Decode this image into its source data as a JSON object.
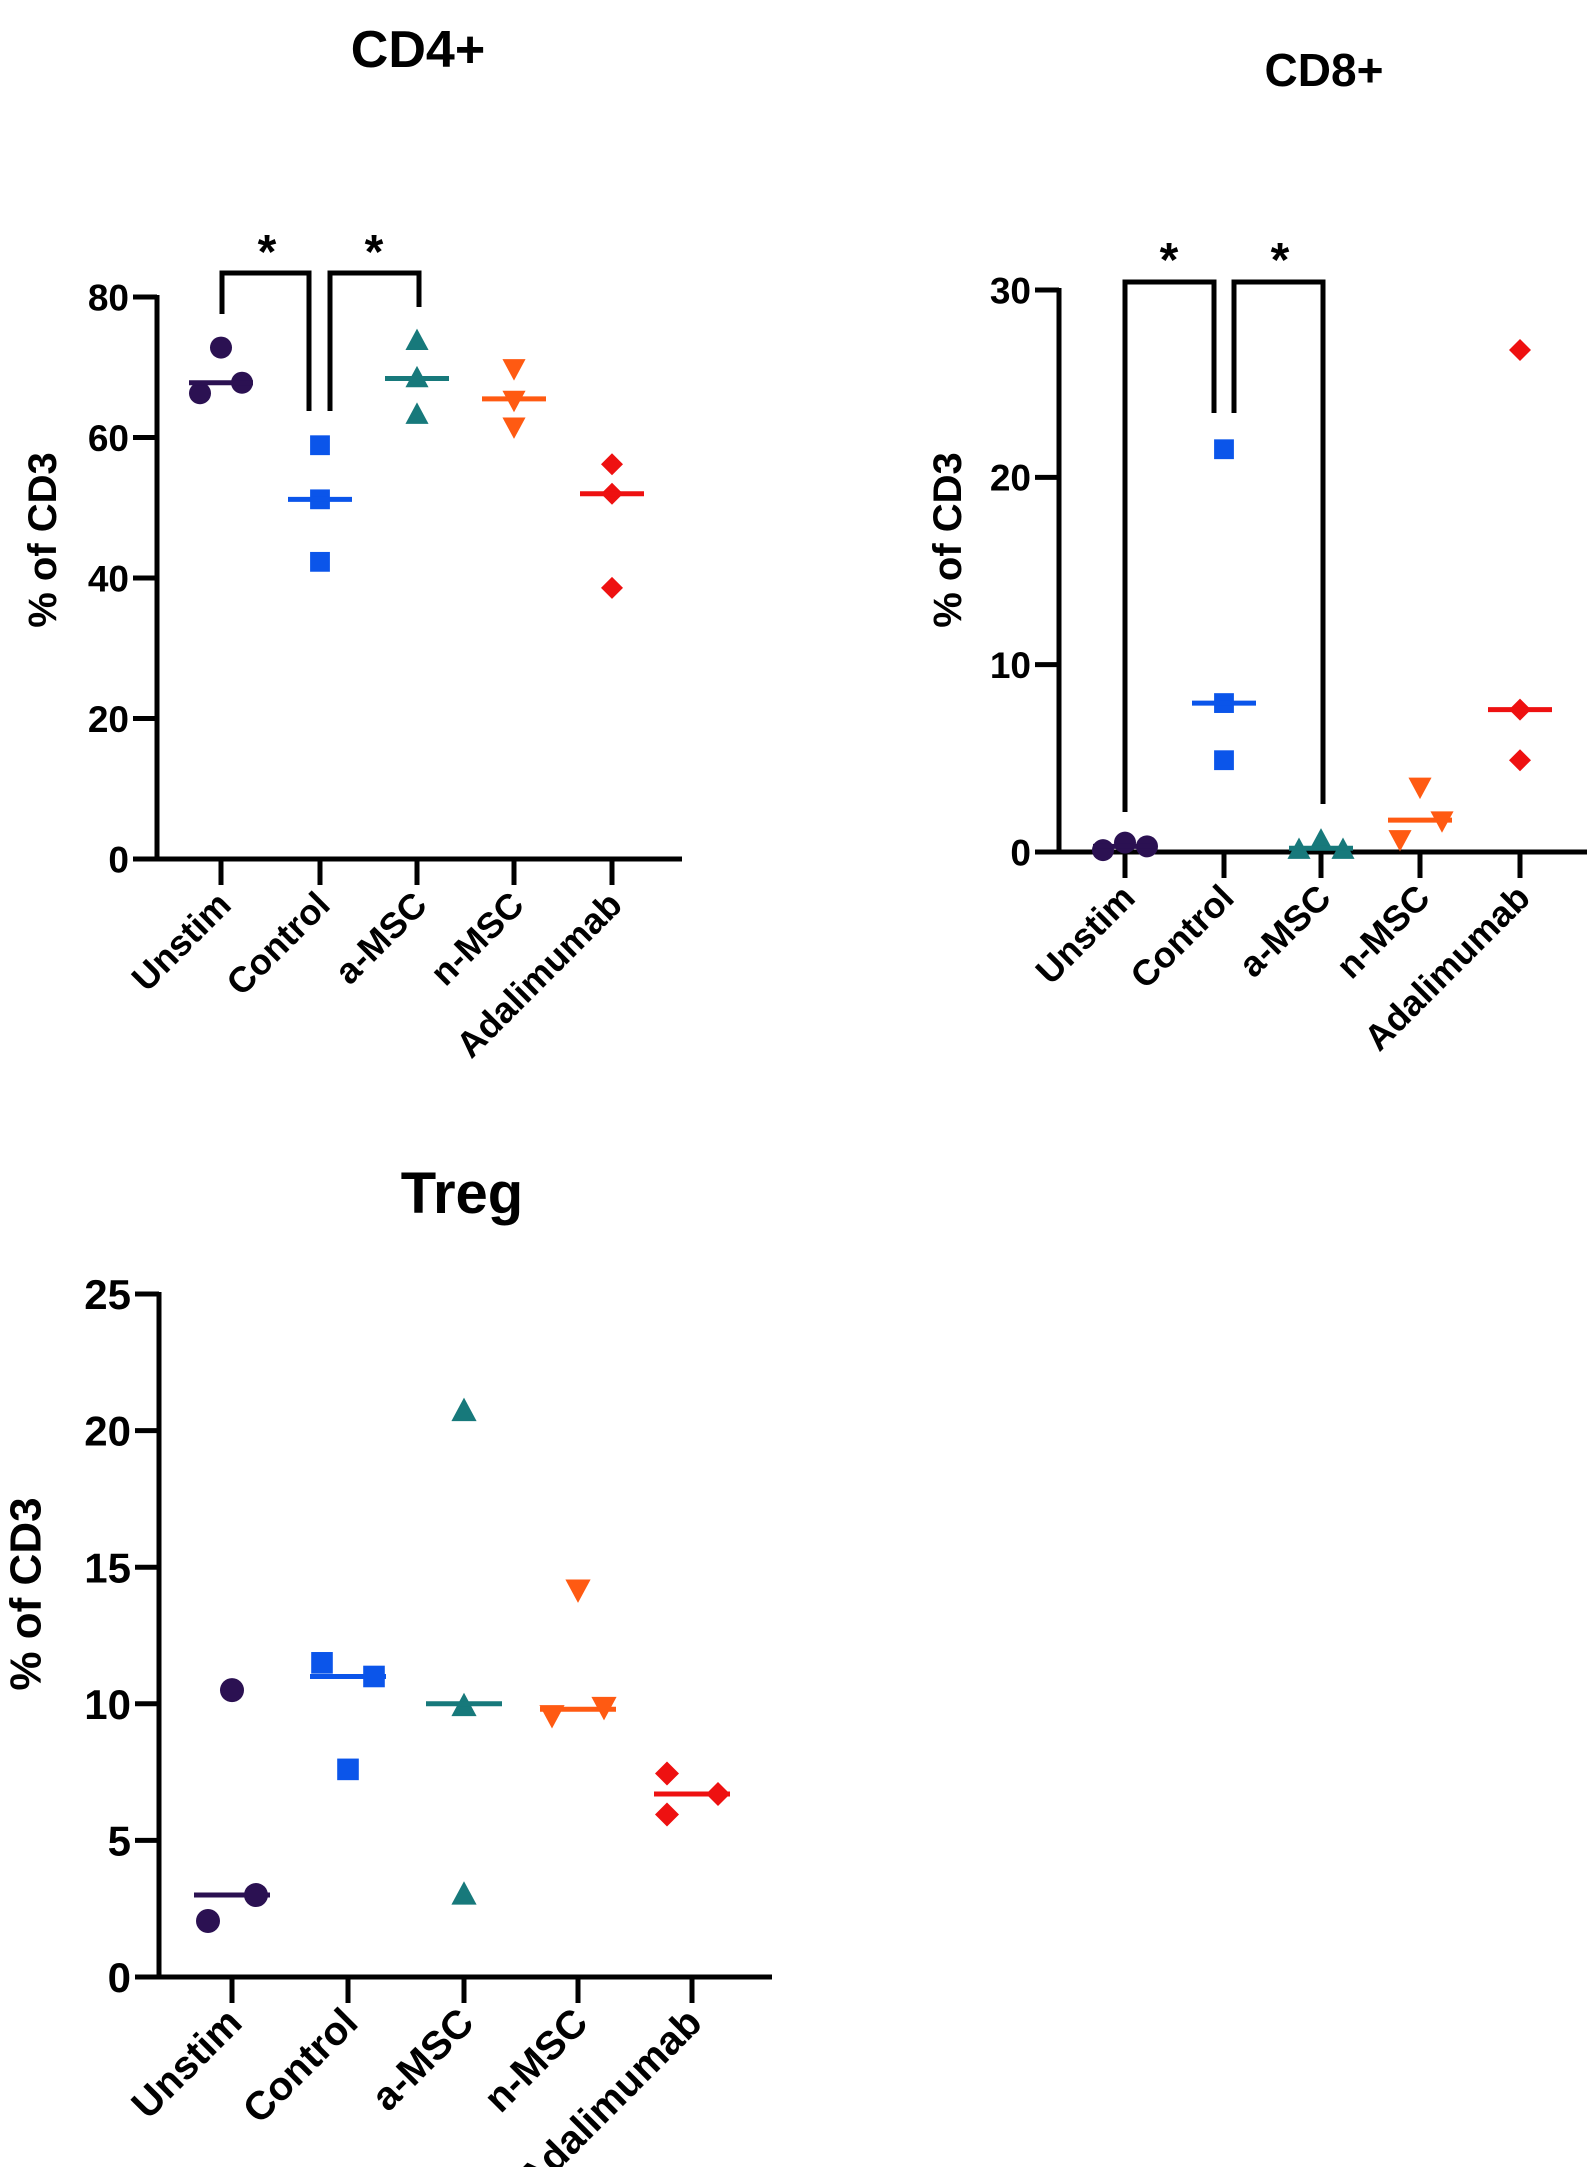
{
  "chart_data": [
    {
      "type": "scatter",
      "title": "CD4+",
      "ylabel": "% of CD3",
      "xlabel": "",
      "ylim": [
        0,
        80
      ],
      "yticks": [
        "0",
        "20",
        "40",
        "60",
        "80"
      ],
      "categories": [
        "Unstim",
        "Control",
        "a-MSC",
        "n-MSC",
        "Adalimumab"
      ],
      "series": [
        {
          "name": "Unstim",
          "values": [
            66.3,
            72.8,
            67.8
          ],
          "median": 67.8,
          "marker": "circle",
          "color": "#2b1152"
        },
        {
          "name": "Control",
          "values": [
            58.9,
            51.2,
            42.3
          ],
          "median": 51.2,
          "marker": "square",
          "color": "#0b55ea"
        },
        {
          "name": "a-MSC",
          "values": [
            73.7,
            68.4,
            63.2
          ],
          "median": 68.4,
          "marker": "triangle-up",
          "color": "#17797b"
        },
        {
          "name": "n-MSC",
          "values": [
            69.9,
            65.4,
            61.6
          ],
          "median": 65.5,
          "marker": "triangle-down",
          "color": "#ff5a12"
        },
        {
          "name": "Adalimumab",
          "values": [
            56.2,
            52.0,
            38.6
          ],
          "median": 52.0,
          "marker": "diamond",
          "color": "#ee1111"
        }
      ],
      "significance": [
        {
          "from": "Unstim",
          "to": "Control",
          "label": "*"
        },
        {
          "from": "Control",
          "to": "a-MSC",
          "label": "*"
        }
      ]
    },
    {
      "type": "scatter",
      "title": "CD8+",
      "ylabel": "% of CD3",
      "xlabel": "",
      "ylim": [
        0,
        30
      ],
      "yticks": [
        "0",
        "10",
        "20",
        "30"
      ],
      "categories": [
        "Unstim",
        "Control",
        "a-MSC",
        "n-MSC",
        "Adalimumab"
      ],
      "series": [
        {
          "name": "Unstim",
          "values": [
            0.1,
            0.5,
            0.3
          ],
          "median": 0.3,
          "marker": "circle",
          "color": "#2b1152"
        },
        {
          "name": "Control",
          "values": [
            21.5,
            7.95,
            4.9
          ],
          "median": 7.95,
          "marker": "square",
          "color": "#0b55ea"
        },
        {
          "name": "a-MSC",
          "values": [
            0.1,
            0.6,
            0.1
          ],
          "median": 0.2,
          "marker": "triangle-up",
          "color": "#17797b"
        },
        {
          "name": "n-MSC",
          "values": [
            0.7,
            3.5,
            1.7
          ],
          "median": 1.7,
          "marker": "triangle-down",
          "color": "#ff5a12"
        },
        {
          "name": "Adalimumab",
          "values": [
            26.8,
            7.6,
            4.9
          ],
          "median": 7.6,
          "marker": "diamond",
          "color": "#ee1111"
        }
      ],
      "significance": [
        {
          "from": "Unstim",
          "to": "Control",
          "label": "*"
        },
        {
          "from": "Control",
          "to": "a-MSC",
          "label": "*"
        }
      ]
    },
    {
      "type": "scatter",
      "title": "Treg",
      "ylabel": "% of CD3",
      "xlabel": "",
      "ylim": [
        0,
        25
      ],
      "yticks": [
        "0",
        "5",
        "10",
        "15",
        "20",
        "25"
      ],
      "categories": [
        "Unstim",
        "Control",
        "a-MSC",
        "n-MSC",
        "Adalimumab"
      ],
      "series": [
        {
          "name": "Unstim",
          "values": [
            2.05,
            10.5,
            3.0
          ],
          "median": 3.0,
          "marker": "circle",
          "color": "#2b1152"
        },
        {
          "name": "Control",
          "values": [
            11.5,
            7.6,
            11.0
          ],
          "median": 11.0,
          "marker": "square",
          "color": "#0b55ea"
        },
        {
          "name": "a-MSC",
          "values": [
            20.7,
            9.9,
            3.0
          ],
          "median": 10.0,
          "marker": "triangle-up",
          "color": "#17797b"
        },
        {
          "name": "n-MSC",
          "values": [
            9.6,
            14.2,
            9.9
          ],
          "median": 9.8,
          "marker": "triangle-down",
          "color": "#ff5a12"
        },
        {
          "name": "Adalimumab",
          "values": [
            7.45,
            5.95,
            6.7
          ],
          "median": 6.7,
          "marker": "diamond",
          "color": "#ee1111"
        }
      ],
      "significance": []
    }
  ]
}
